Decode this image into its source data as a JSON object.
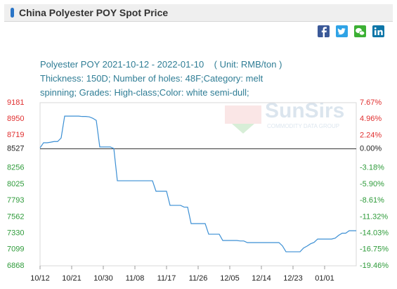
{
  "header": {
    "title": "China Polyester POY Spot Price"
  },
  "chart_data": {
    "type": "line",
    "title": "Polyester POY 2021-10-12 - 2022-01-10    ( Unit: RMB/ton )",
    "subtitle": "Thickness: 150D; Number of holes: 48F;Category: melt spinning; Grades: High-class;Color: white semi-dull;",
    "watermark": {
      "name": "SunSirs",
      "tagline": "COMMODITY DATA GROUP"
    },
    "x": [
      "10/12",
      null,
      null,
      null,
      null,
      null,
      null,
      null,
      null,
      "10/21",
      null,
      null,
      null,
      null,
      null,
      null,
      null,
      null,
      "10/30",
      null,
      null,
      null,
      null,
      null,
      null,
      null,
      null,
      "11/08",
      null,
      null,
      null,
      null,
      null,
      null,
      null,
      null,
      "11/17",
      null,
      null,
      null,
      null,
      null,
      null,
      null,
      null,
      "11/26",
      null,
      null,
      null,
      null,
      null,
      null,
      null,
      null,
      "12/05",
      null,
      null,
      null,
      null,
      null,
      null,
      null,
      null,
      "12/14",
      null,
      null,
      null,
      null,
      null,
      null,
      null,
      null,
      "12/23",
      null,
      null,
      null,
      null,
      null,
      null,
      null,
      null,
      "01/01",
      null,
      null,
      null,
      null,
      null,
      null,
      null,
      null,
      null
    ],
    "values": [
      8540,
      8613,
      8613,
      8620,
      8630,
      8630,
      8680,
      8990,
      8990,
      8990,
      8990,
      8990,
      8985,
      8985,
      8980,
      8960,
      8930,
      8553,
      8553,
      8553,
      8553,
      8530,
      8074,
      8074,
      8074,
      8074,
      8074,
      8074,
      8074,
      8074,
      8074,
      8074,
      8074,
      7925,
      7925,
      7925,
      7925,
      7725,
      7725,
      7725,
      7725,
      7700,
      7700,
      7466,
      7466,
      7466,
      7466,
      7466,
      7316,
      7316,
      7316,
      7316,
      7227,
      7227,
      7227,
      7227,
      7227,
      7220,
      7220,
      7197,
      7197,
      7197,
      7197,
      7197,
      7197,
      7197,
      7197,
      7197,
      7197,
      7150,
      7067,
      7067,
      7067,
      7067,
      7067,
      7120,
      7147,
      7180,
      7200,
      7247,
      7247,
      7247,
      7247,
      7247,
      7260,
      7300,
      7330,
      7330,
      7365,
      7365,
      7365
    ],
    "color": "#3b8fd4",
    "ylim": [
      6868,
      9181
    ],
    "yticks": [
      9181,
      8950,
      8719,
      8527,
      8256,
      8025,
      7793,
      7562,
      7330,
      7099,
      6868
    ],
    "y2lim": [
      -19.46,
      7.67
    ],
    "y2ticks": [
      {
        "value": 7.67,
        "label": "7.67%"
      },
      {
        "value": 4.96,
        "label": "4.96%"
      },
      {
        "value": 2.24,
        "label": "2.24%"
      },
      {
        "value": 0,
        "label": "0.00%"
      },
      {
        "value": -3.18,
        "label": "-3.18%"
      },
      {
        "value": -5.9,
        "label": "-5.90%"
      },
      {
        "value": -8.61,
        "label": "-8.61%"
      },
      {
        "value": -11.32,
        "label": "-11.32%"
      },
      {
        "value": -14.03,
        "label": "-14.03%"
      },
      {
        "value": -16.75,
        "label": "-16.75%"
      },
      {
        "value": -19.46,
        "label": "-19.46%"
      }
    ],
    "up_color": "#e02f2f",
    "down_color": "#2e9b3a",
    "grid": false
  }
}
